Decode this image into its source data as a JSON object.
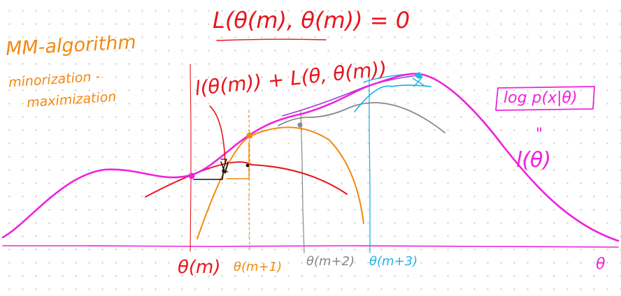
{
  "colors": {
    "magenta": "#ee22dd",
    "red": "#e8141c",
    "orange": "#f28a10",
    "gray": "#888888",
    "cyan": "#22b4e8",
    "purple": "#9a3fd4",
    "black": "#111111"
  },
  "notes": {
    "title_line1": "MM-algorithm",
    "title_line2": "minorization -",
    "title_line3": "maximization"
  },
  "equations": {
    "top": "L(θ(m), θ(m)) = 0",
    "red_label": "l(θ(m)) + L(θ, θ(m))",
    "log_likelihood": "log p(x|θ)",
    "ditto": "\"",
    "l_theta": "l(θ)"
  },
  "axis": {
    "theta_m": "θ(m)",
    "theta_m1": "θ(m+1)",
    "theta_m2": "θ(m+2)",
    "theta_m3": "θ(m+3)",
    "theta": "θ"
  }
}
